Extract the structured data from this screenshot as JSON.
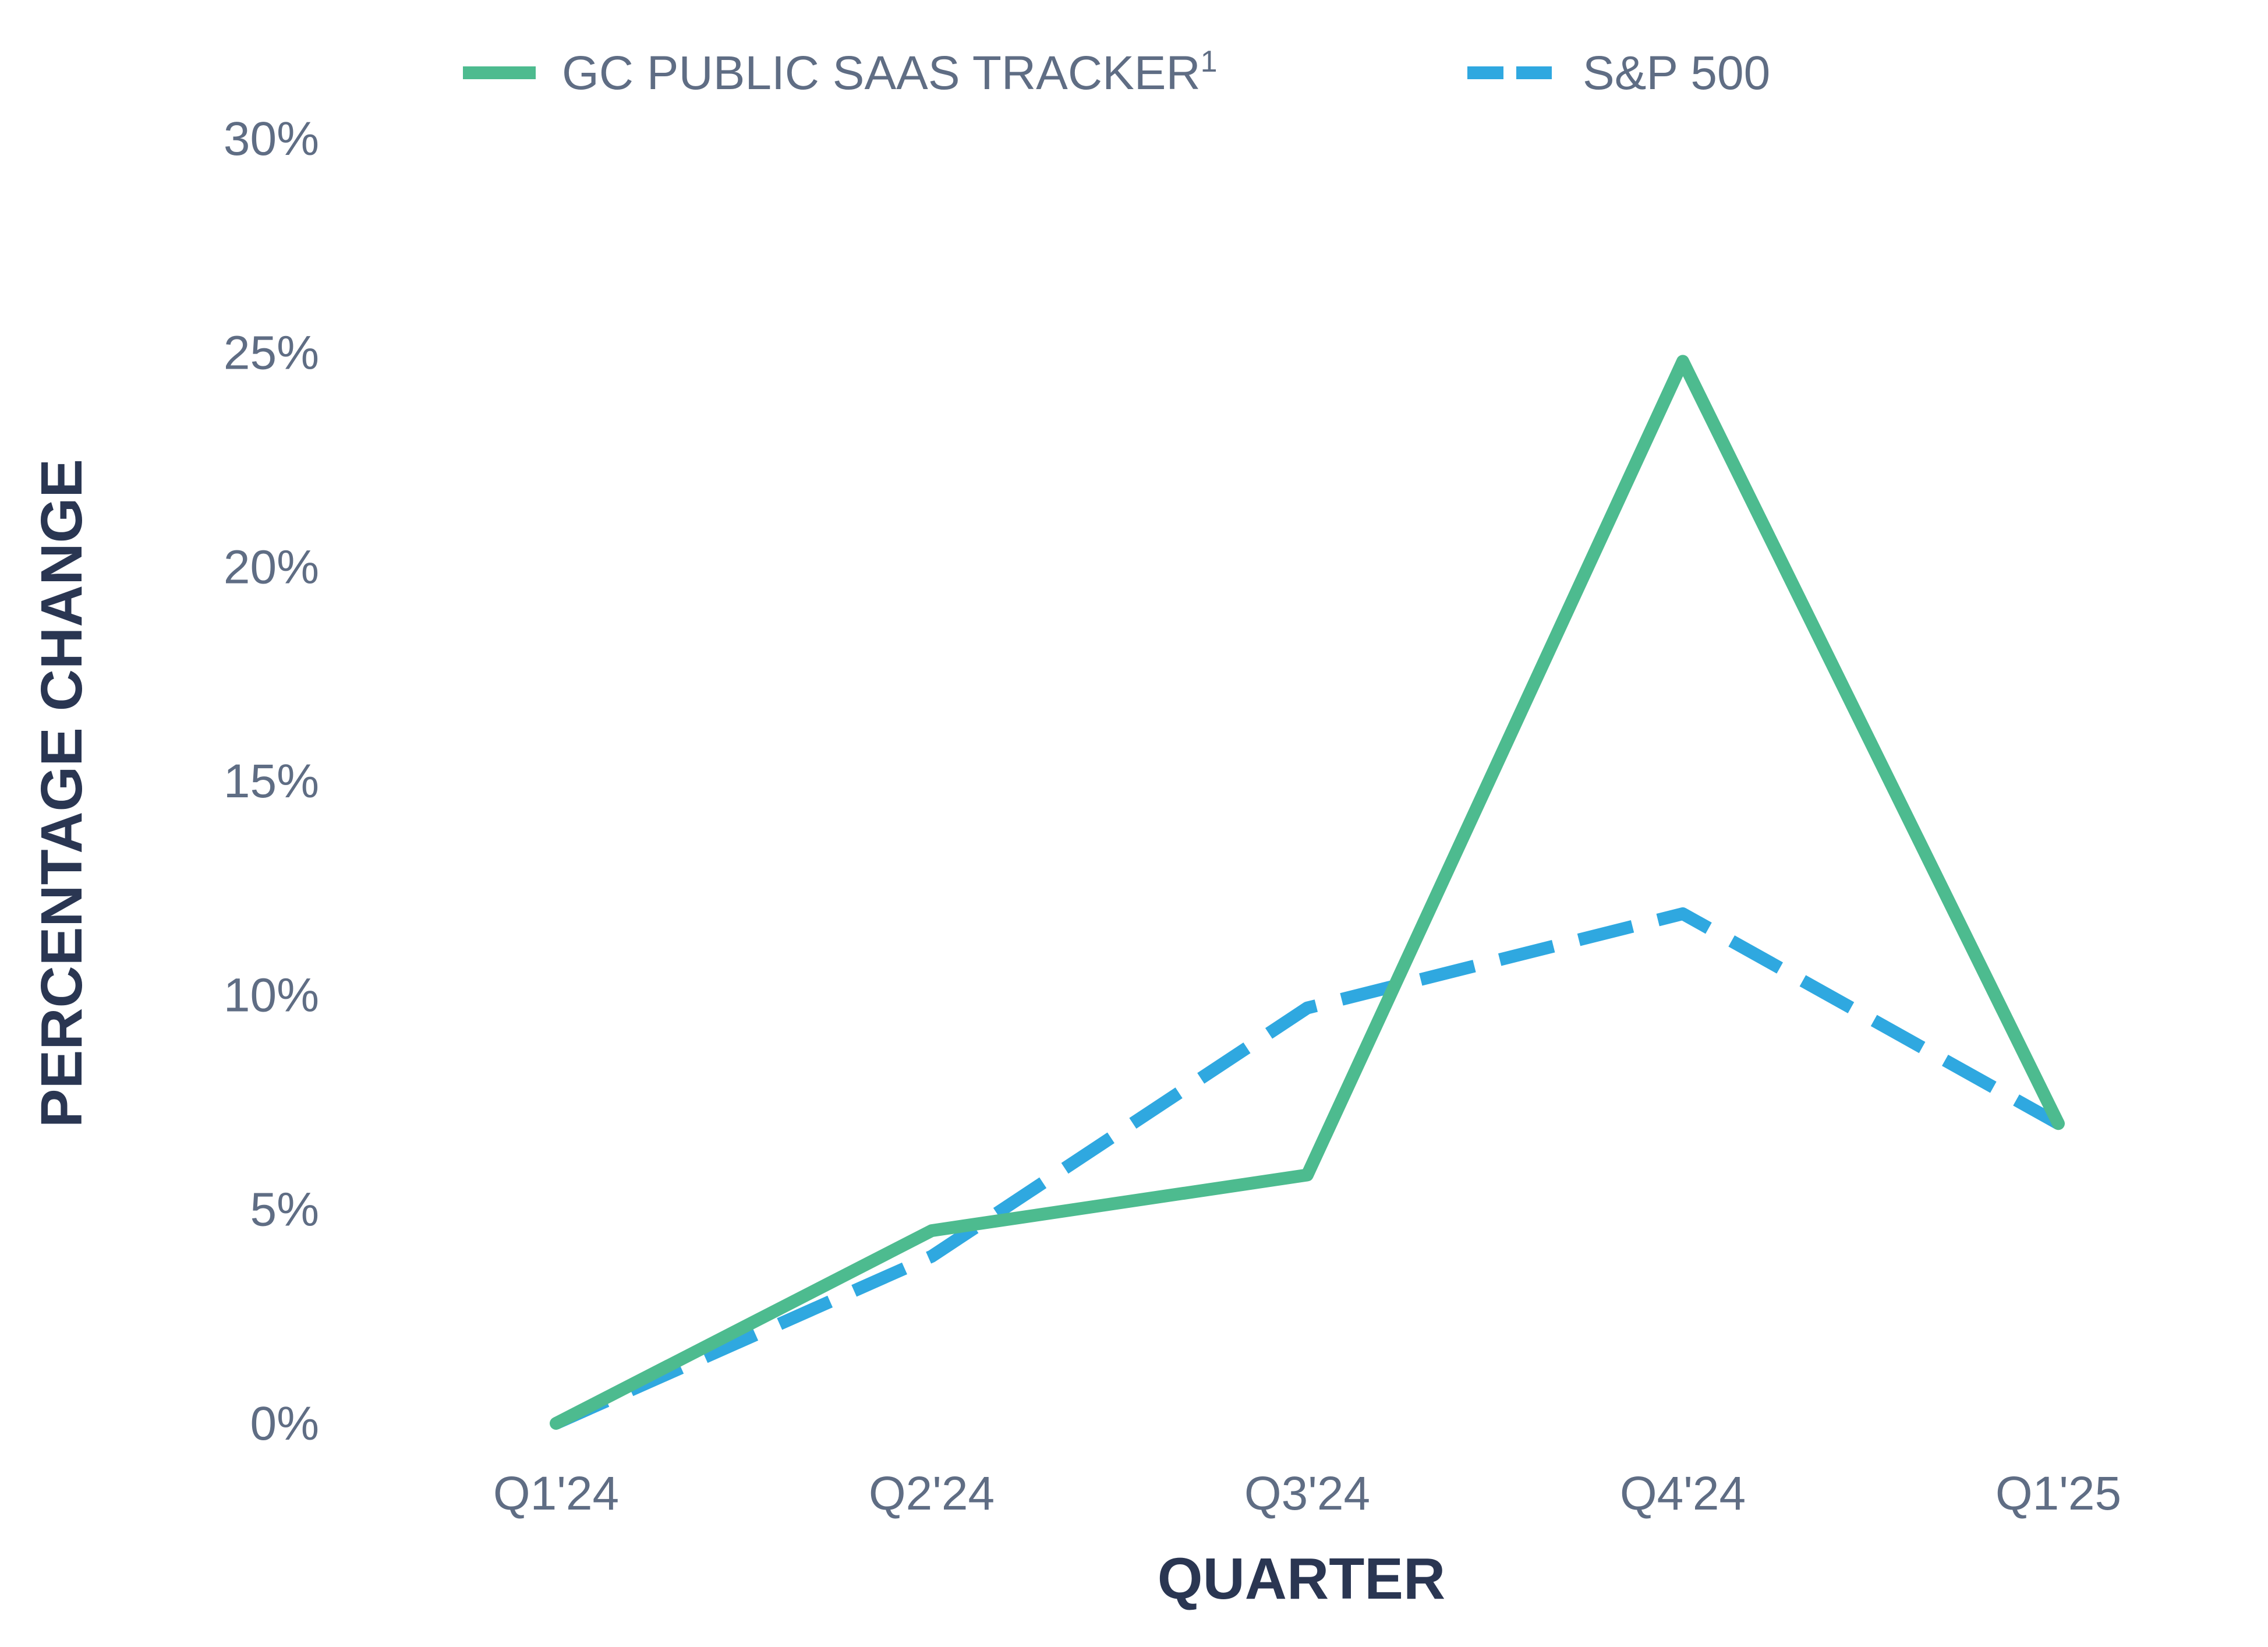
{
  "chart_data": {
    "type": "line",
    "title": "",
    "xlabel": "QUARTER",
    "ylabel": "PERCENTAGE CHANGE",
    "categories": [
      "Q1'24",
      "Q2'24",
      "Q3'24",
      "Q4'24",
      "Q1'25"
    ],
    "yticks": [
      "0%",
      "5%",
      "10%",
      "15%",
      "20%",
      "25%",
      "30%"
    ],
    "ylim": [
      0,
      30
    ],
    "grid": false,
    "legend": "top",
    "series": [
      {
        "name": "GC PUBLIC SAAS TRACKER",
        "superscript": "1",
        "values": [
          0,
          4.5,
          5.8,
          24.8,
          7.0
        ],
        "color": "#4dbb8f",
        "style": "solid"
      },
      {
        "name": "S&P 500",
        "values": [
          0,
          3.9,
          9.7,
          11.9,
          7.0
        ],
        "color": "#2fa8e0",
        "style": "dashed"
      }
    ]
  }
}
